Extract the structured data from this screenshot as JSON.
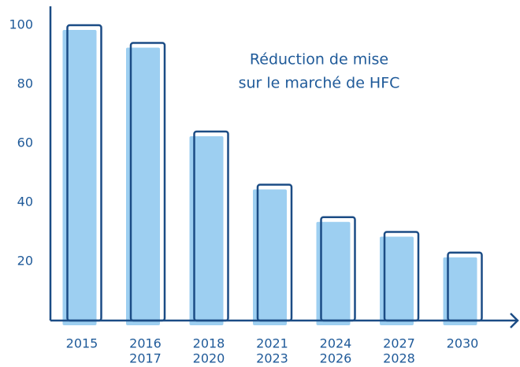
{
  "chart_data": {
    "type": "bar",
    "title": [
      "Réduction de mise",
      "sur le marché de HFC"
    ],
    "categories": [
      [
        "2015"
      ],
      [
        "2016",
        "2017"
      ],
      [
        "2018",
        "2020"
      ],
      [
        "2021",
        "2023"
      ],
      [
        "2024",
        "2026"
      ],
      [
        "2027",
        "2028"
      ],
      [
        "2030"
      ]
    ],
    "values": [
      100,
      94,
      64,
      46,
      35,
      30,
      23
    ],
    "color": "#9dcff1",
    "outline_color": "#1b4c85",
    "text_color": "#1f5a99",
    "ylim": [
      0,
      100
    ],
    "yticks": [
      20,
      40,
      60,
      80,
      100
    ],
    "grid": false
  }
}
